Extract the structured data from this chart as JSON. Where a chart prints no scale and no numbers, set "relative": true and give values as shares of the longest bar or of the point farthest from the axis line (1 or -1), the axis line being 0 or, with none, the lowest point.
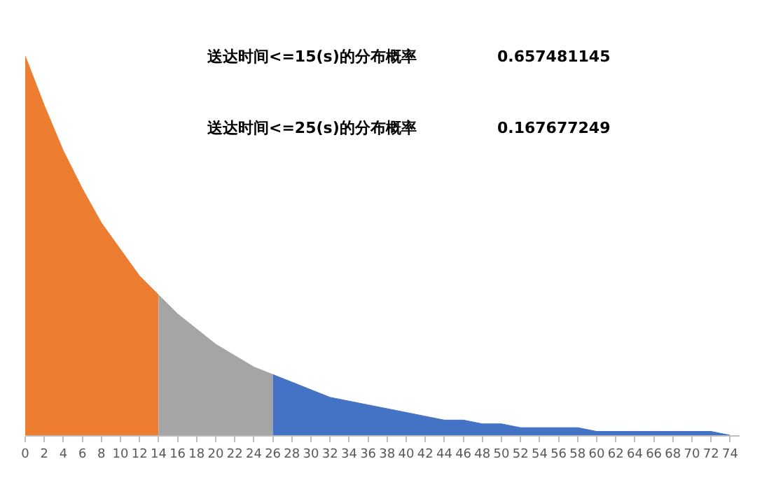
{
  "chart_data": {
    "type": "area",
    "relative": true,
    "annotations": [
      "送达时间<=15(s)的分布概率",
      "0.657481145",
      "送达时间<=25(s)的分布概率",
      "0.167677249"
    ],
    "xlim": [
      0,
      75
    ],
    "xticks": [
      0,
      2,
      4,
      6,
      8,
      10,
      12,
      14,
      16,
      18,
      20,
      22,
      24,
      26,
      28,
      30,
      32,
      34,
      36,
      38,
      40,
      42,
      44,
      46,
      48,
      50,
      52,
      54,
      56,
      58,
      60,
      62,
      64,
      66,
      68,
      70,
      72,
      74
    ],
    "series": [
      {
        "color": "#ed7d31",
        "x": [
          0,
          2,
          4,
          6,
          8,
          10,
          12,
          14
        ],
        "values": [
          1.0,
          0.87,
          0.75,
          0.65,
          0.56,
          0.49,
          0.42,
          0.37
        ]
      },
      {
        "color": "#a5a5a5",
        "x": [
          14,
          16,
          18,
          20,
          22,
          24,
          26
        ],
        "values": [
          0.37,
          0.32,
          0.28,
          0.24,
          0.21,
          0.18,
          0.16
        ]
      },
      {
        "color": "#4472c4",
        "x": [
          26,
          28,
          30,
          32,
          34,
          36,
          38,
          40,
          42,
          44,
          46,
          48,
          50,
          52,
          54,
          56,
          58,
          60,
          62,
          64,
          66,
          68,
          70,
          72,
          74
        ],
        "values": [
          0.16,
          0.14,
          0.12,
          0.1,
          0.09,
          0.08,
          0.07,
          0.06,
          0.05,
          0.04,
          0.04,
          0.03,
          0.03,
          0.02,
          0.02,
          0.02,
          0.02,
          0.01,
          0.01,
          0.01,
          0.01,
          0.01,
          0.01,
          0.01,
          0.0
        ]
      }
    ]
  }
}
